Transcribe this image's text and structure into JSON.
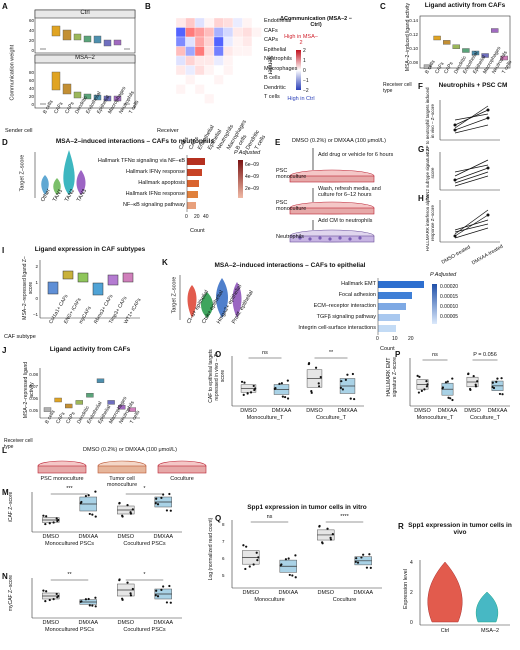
{
  "panels": {
    "A": {
      "letter": "A",
      "box1": "Ctrl",
      "box2": "MSA–2",
      "ylabel": "Communication weight",
      "xlabel": "Sender cell",
      "cats": [
        "B cells",
        "CAFs",
        "CAPs",
        "Dendritic",
        "Endothelial",
        "Epithelial",
        "Macrophages",
        "Neutrophils",
        "T cells"
      ],
      "yticks1": [
        "0",
        "20",
        "40",
        "60"
      ],
      "yticks2": [
        "0",
        "20",
        "40",
        "60",
        "80"
      ]
    },
    "B": {
      "letter": "B",
      "title": "ΔCommunication (MSA–2 − Ctrl)",
      "legend_high": "High in MSA–2",
      "legend_low": "High in Ctrl",
      "scale": [
        "2",
        "1",
        "0",
        "−1",
        "−2"
      ],
      "rows": [
        "Endothelial",
        "CAFs",
        "CAPs",
        "Epithelial",
        "Neutrophils",
        "Macrophages",
        "B cells",
        "Dendritic",
        "T cells"
      ],
      "cols": [
        "CAFs",
        "CAPs",
        "Endothelial",
        "Epithelial",
        "Neutrophils",
        "Macrophages",
        "B cells",
        "Dendritic",
        "T cells"
      ],
      "ylabel": "Sender",
      "xlabel": "Receiver"
    },
    "C": {
      "letter": "C",
      "title": "Ligand activity from CAFs",
      "ylabel": "MSA–2–induced ligand activity",
      "xlabel": "Receiver cell type",
      "cats": [
        "B cells",
        "CAFs",
        "CAPs",
        "Dendritic",
        "Endothelial",
        "Epithelial",
        "Macrophages",
        "Neutrophils",
        "T cells"
      ],
      "yticks": [
        "0.08",
        "0.10",
        "0.12",
        "0.14"
      ]
    },
    "D": {
      "letter": "D",
      "title": "MSA–2–induced interactions – CAFs to neutrophils",
      "ylabel": "Target Z–score",
      "violins": [
        "Other",
        "TAN1",
        "TAN2",
        "TAN3"
      ],
      "terms": [
        "Hallmark TFNα signaling via NF–κB",
        "Hallmark IFNγ response",
        "Hallmark apoptosis",
        "Hallmark IFNα response",
        "NF–κB signaling pathway"
      ],
      "xlabel": "Count",
      "xticks": [
        "0",
        "20",
        "40"
      ],
      "legend_title": "P Adjusted",
      "legend_vals": [
        "6e–09",
        "4e–09",
        "2e–09"
      ]
    },
    "E": {
      "letter": "E",
      "step1": "DMSO (0.2%) or DMXAA (100 μmol/L)",
      "step2": "Add drug or vehicle for 6 hours",
      "step3": "PSC monoculture",
      "step4": "Wash, refresh media, and culture for 6–12 hours",
      "step5": "PSC monoculture",
      "step6": "Add CM to neutrophils",
      "step7": "Neutrophils"
    },
    "F": {
      "letter": "F",
      "title": "Neutrophils + PSC CM",
      "ylabel": "CAF to neutrophil targets induced in vivo – Z–score"
    },
    "G": {
      "letter": "G",
      "ylabel": "TAN2 subtype signature Z–score"
    },
    "H": {
      "letter": "H",
      "ylabel": "HALLMARK interferon alpha response Z–score",
      "x1": "DMSO-treated",
      "x2": "DMXAA-treated"
    },
    "I": {
      "letter": "I",
      "title": "Ligand expression in CAF subtypes",
      "ylabel": "MSA–2–repressed ligand Z–score",
      "xlabel": "CAF subtype",
      "cats": [
        "Col1a1+ CAFs",
        "ENG+ iCAFs",
        "myCAFs",
        "Rbms3+ CAFs",
        "Timp3+ CAFs",
        "WT1+ iCAFs"
      ],
      "yticks": [
        "2",
        "1",
        "0",
        "−1"
      ]
    },
    "J": {
      "letter": "J",
      "title": "Ligand activity from CAFs",
      "ylabel": "MSA–2–repressed ligand activity",
      "xlabel": "Receiver cell type",
      "cats": [
        "B cells",
        "CAFs",
        "CAPs",
        "Dendritic",
        "Endothelial",
        "Epithelial",
        "Macrophages",
        "Neutrophils",
        "T cells"
      ],
      "yticks": [
        "0.08",
        "0.07",
        "0.06",
        "0.05"
      ]
    },
    "K": {
      "letter": "K",
      "title": "MSA–2–induced interactions – CAFs to epithelial",
      "ylabel": "Target Z–score",
      "violins": [
        "Cl–u+ epithelial",
        "Ctsk+ epithelial",
        "Hmga2+ epithelial",
        "Prolif. epithelial"
      ],
      "terms": [
        "Hallmark EMT",
        "Focal adhesion",
        "ECM–receptor interaction",
        "TGFβ signaling pathway",
        "Integrin cell-surface interactions"
      ],
      "xlabel": "Count",
      "xticks": [
        "0",
        "10",
        "20"
      ],
      "legend_title": "P Adjusted",
      "legend_vals": [
        "0.00020",
        "0.00015",
        "0.00010",
        "0.00005"
      ]
    },
    "L": {
      "letter": "L",
      "title": "DMSO (0.2%) or DMXAA (100 μmol/L)",
      "dishes": [
        "PSC monoculture",
        "Tumor cell monoculture",
        "Coculture"
      ]
    },
    "M": {
      "letter": "M",
      "ylabel": "iCAF Z–score",
      "groups": [
        "DMSO",
        "DMXAA",
        "DMSO",
        "DMXAA"
      ],
      "glabel1": "Monocultured PSCs",
      "glabel2": "Cocultured PSCs",
      "sig1": "***",
      "sig2": "*"
    },
    "N": {
      "letter": "N",
      "ylabel": "myCAF Z–score",
      "groups": [
        "DMSO",
        "DMXAA",
        "DMSO",
        "DMXAA"
      ],
      "glabel1": "Monocultured PSCs",
      "glabel2": "Cocultured PSCs",
      "sig1": "**",
      "sig2": "*"
    },
    "O": {
      "letter": "O",
      "ylabel": "CAF to epithelial targets repressed in vivo – Z–score",
      "groups": [
        "DMSO",
        "DMXAA",
        "DMSO",
        "DMXAA"
      ],
      "glabel1": "Monoculture_T",
      "glabel2": "Coculture_T",
      "sig1": "ns",
      "sig2": "**"
    },
    "P": {
      "letter": "P",
      "ylabel": "HALLMARK EMT signature Z–score",
      "groups": [
        "DMSO",
        "DMXAA",
        "DMSO",
        "DMXAA"
      ],
      "glabel1": "Monoculture_T",
      "glabel2": "Coculture_T",
      "sig1": "ns",
      "sig2": "P = 0.056"
    },
    "Q": {
      "letter": "Q",
      "title": "Spp1 expression in tumor cells in vitro",
      "ylabel": "Log (normalized read count)",
      "groups": [
        "DMSO",
        "DMXAA",
        "DMSO",
        "DMXAA"
      ],
      "glabel1": "Monoculture",
      "glabel2": "Coculture",
      "sig1": "ns",
      "sig2": "****",
      "yticks": [
        "8",
        "7",
        "6",
        "5"
      ]
    },
    "R": {
      "letter": "R",
      "title": "Spp1 expression in tumor cells in vivo",
      "ylabel": "Expression level",
      "groups": [
        "Ctrl",
        "MSA–2"
      ],
      "yticks": [
        "4",
        "2",
        "0"
      ]
    }
  },
  "colors": {
    "heat_high": "#d1242f",
    "heat_low": "#2a3fb8",
    "bar_dark": "#b5301f",
    "bar_mid": "#d9632e",
    "bar_light": "#e8a07c",
    "k_bar_dark": "#2e6fcf",
    "k_bar_light": "#a9c8ef",
    "dmso_box": "#e6e6e6",
    "dmxaa_box": "#a9d2e6",
    "ctrl_violin": "#e25b4d",
    "msa_violin": "#47b8c4"
  }
}
